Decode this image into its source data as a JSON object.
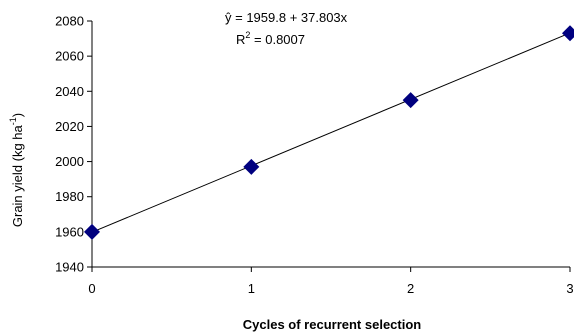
{
  "chart_data": {
    "type": "scatter",
    "x": [
      0,
      1,
      2,
      3
    ],
    "y": [
      1960,
      1997,
      2035,
      2073
    ],
    "xlim": [
      0,
      3
    ],
    "ylim": [
      1940,
      2080
    ],
    "x_ticks": [
      "0",
      "1",
      "2",
      "3"
    ],
    "y_ticks": [
      "1940",
      "1960",
      "1980",
      "2000",
      "2020",
      "2040",
      "2060",
      "2080"
    ],
    "xlabel": "Cycles of recurrent selection",
    "ylabel_main": "Grain yield (kg ha",
    "ylabel_sup": "-1",
    "ylabel_close": ")",
    "trendline": {
      "intercept": 1959.8,
      "slope": 37.803
    },
    "equation": "ŷ = 1959.8 + 37.803x",
    "r2_label": "R",
    "r2_sup": "2",
    "r2_value": " = 0.8007",
    "marker_color": "#00007f",
    "line_color": "#000000",
    "grid": false,
    "legend": false
  }
}
